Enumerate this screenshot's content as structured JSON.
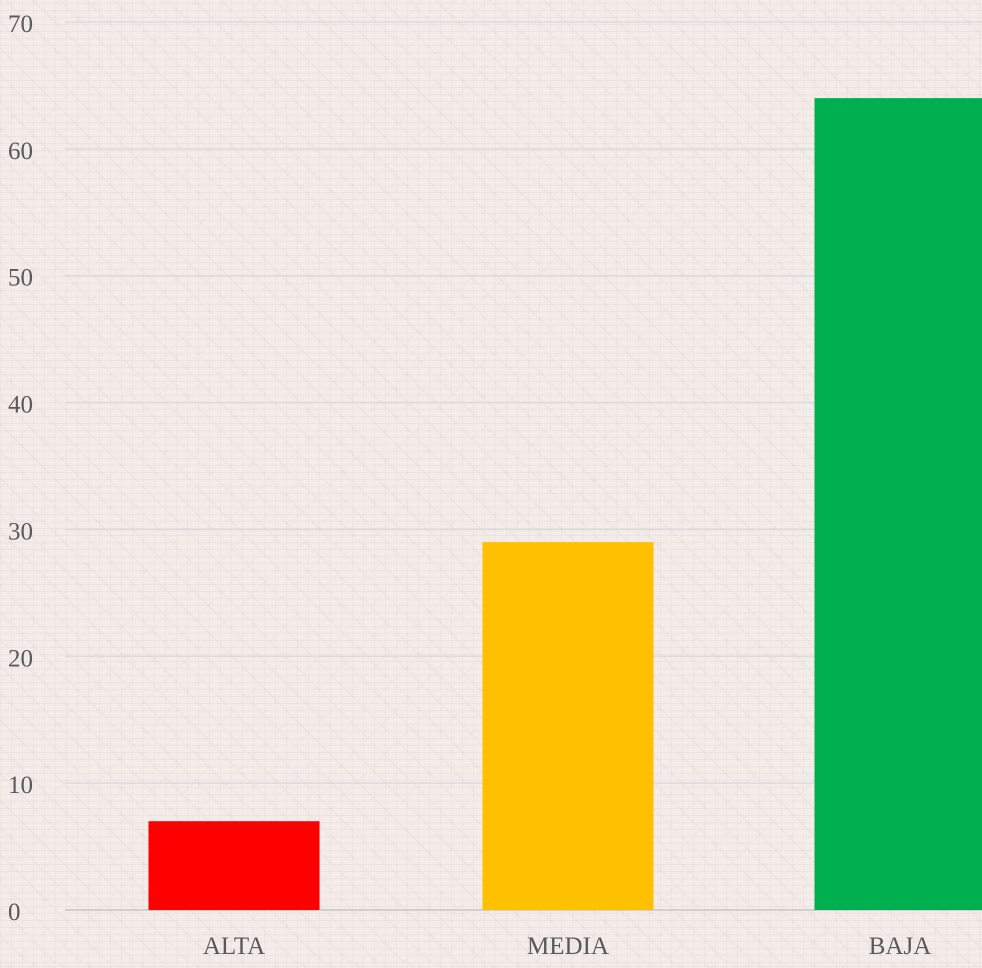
{
  "chart_data": {
    "type": "bar",
    "title": "",
    "xlabel": "",
    "ylabel": "",
    "categories": [
      "ALTA",
      "MEDIA",
      "BAJA"
    ],
    "values": [
      7,
      29,
      64
    ],
    "colors": [
      "#ff0000",
      "#ffc000",
      "#00b050"
    ],
    "ylim": [
      0,
      70
    ],
    "yticks": [
      0,
      10,
      20,
      30,
      40,
      50,
      60,
      70
    ],
    "grid": true,
    "legend": "none"
  }
}
